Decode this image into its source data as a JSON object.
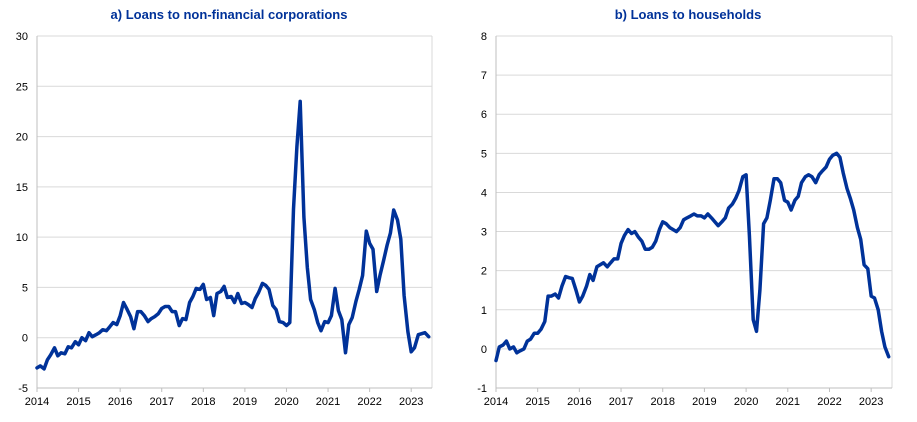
{
  "chart_data": [
    {
      "type": "line",
      "title": "a) Loans to non-financial corporations",
      "xlabel": "",
      "ylabel": "",
      "ylim": [
        -5,
        30
      ],
      "xlim": [
        2014.0,
        2023.5
      ],
      "yticks": [
        "-5",
        "0",
        "5",
        "10",
        "15",
        "20",
        "25",
        "30"
      ],
      "xticks": [
        "2014",
        "2015",
        "2016",
        "2017",
        "2018",
        "2019",
        "2020",
        "2021",
        "2022",
        "2023"
      ],
      "grid": "horizontal",
      "line_color": "#003299",
      "series": [
        {
          "x": [
            2014.0,
            2014.08,
            2014.17,
            2014.25,
            2014.33,
            2014.42,
            2014.5,
            2014.58,
            2014.67,
            2014.75,
            2014.83,
            2014.92,
            2015.0,
            2015.08,
            2015.17,
            2015.25,
            2015.33,
            2015.42,
            2015.5,
            2015.58,
            2015.67,
            2015.75,
            2015.83,
            2015.92,
            2016.0,
            2016.08,
            2016.17,
            2016.25,
            2016.33,
            2016.42,
            2016.5,
            2016.58,
            2016.67,
            2016.75,
            2016.83,
            2016.92,
            2017.0,
            2017.08,
            2017.17,
            2017.25,
            2017.33,
            2017.42,
            2017.5,
            2017.58,
            2017.67,
            2017.75,
            2017.83,
            2017.92,
            2018.0,
            2018.08,
            2018.17,
            2018.25,
            2018.33,
            2018.42,
            2018.5,
            2018.58,
            2018.67,
            2018.75,
            2018.83,
            2018.92,
            2019.0,
            2019.08,
            2019.17,
            2019.25,
            2019.33,
            2019.42,
            2019.5,
            2019.58,
            2019.67,
            2019.75,
            2019.83,
            2019.92,
            2020.0,
            2020.08,
            2020.17,
            2020.25,
            2020.33,
            2020.42,
            2020.5,
            2020.58,
            2020.67,
            2020.75,
            2020.83,
            2020.92,
            2021.0,
            2021.08,
            2021.17,
            2021.25,
            2021.33,
            2021.42,
            2021.5,
            2021.58,
            2021.67,
            2021.75,
            2021.83,
            2021.92,
            2022.0,
            2022.08,
            2022.17,
            2022.25,
            2022.33,
            2022.42,
            2022.5,
            2022.58,
            2022.67,
            2022.75,
            2022.83,
            2022.92,
            2023.0,
            2023.08,
            2023.17,
            2023.25,
            2023.33,
            2023.42
          ],
          "values": [
            -3.0,
            -2.8,
            -3.1,
            -2.2,
            -1.7,
            -1.0,
            -1.8,
            -1.5,
            -1.6,
            -0.9,
            -1.0,
            -0.4,
            -0.7,
            0.0,
            -0.3,
            0.5,
            0.1,
            0.3,
            0.5,
            0.8,
            0.7,
            1.1,
            1.5,
            1.3,
            2.2,
            3.5,
            2.8,
            2.1,
            0.9,
            2.6,
            2.6,
            2.2,
            1.6,
            1.9,
            2.1,
            2.4,
            2.9,
            3.1,
            3.1,
            2.6,
            2.6,
            1.2,
            1.9,
            1.8,
            3.5,
            4.1,
            4.9,
            4.8,
            5.3,
            3.8,
            4.0,
            2.2,
            4.4,
            4.6,
            5.1,
            4.0,
            4.1,
            3.5,
            4.4,
            3.4,
            3.5,
            3.3,
            3.0,
            3.9,
            4.5,
            5.4,
            5.2,
            4.8,
            3.2,
            2.8,
            1.6,
            1.5,
            1.2,
            1.5,
            12.8,
            19.0,
            23.5,
            12.0,
            7.0,
            3.8,
            2.8,
            1.5,
            0.7,
            1.6,
            1.5,
            2.2,
            4.9,
            2.7,
            1.8,
            -1.5,
            1.3,
            2.0,
            3.6,
            4.8,
            6.2,
            10.6,
            9.4,
            8.8,
            4.6,
            6.2,
            7.6,
            9.2,
            10.4,
            12.7,
            11.7,
            9.8,
            4.2,
            0.6,
            -1.4,
            -1.0,
            0.3,
            0.4,
            0.5,
            0.1
          ]
        }
      ]
    },
    {
      "type": "line",
      "title": "b) Loans to households",
      "xlabel": "",
      "ylabel": "",
      "ylim": [
        -1,
        8
      ],
      "xlim": [
        2014.0,
        2023.5
      ],
      "yticks": [
        "-1",
        "0",
        "1",
        "2",
        "3",
        "4",
        "5",
        "6",
        "7",
        "8"
      ],
      "xticks": [
        "2014",
        "2015",
        "2016",
        "2017",
        "2018",
        "2019",
        "2020",
        "2021",
        "2022",
        "2023"
      ],
      "grid": "horizontal",
      "line_color": "#003299",
      "series": [
        {
          "x": [
            2014.0,
            2014.08,
            2014.17,
            2014.25,
            2014.33,
            2014.42,
            2014.5,
            2014.58,
            2014.67,
            2014.75,
            2014.83,
            2014.92,
            2015.0,
            2015.08,
            2015.17,
            2015.25,
            2015.33,
            2015.42,
            2015.5,
            2015.58,
            2015.67,
            2015.75,
            2015.83,
            2015.92,
            2016.0,
            2016.08,
            2016.17,
            2016.25,
            2016.33,
            2016.42,
            2016.5,
            2016.58,
            2016.67,
            2016.75,
            2016.83,
            2016.92,
            2017.0,
            2017.08,
            2017.17,
            2017.25,
            2017.33,
            2017.42,
            2017.5,
            2017.58,
            2017.67,
            2017.75,
            2017.83,
            2017.92,
            2018.0,
            2018.08,
            2018.17,
            2018.25,
            2018.33,
            2018.42,
            2018.5,
            2018.58,
            2018.67,
            2018.75,
            2018.83,
            2018.92,
            2019.0,
            2019.08,
            2019.17,
            2019.25,
            2019.33,
            2019.42,
            2019.5,
            2019.58,
            2019.67,
            2019.75,
            2019.83,
            2019.92,
            2020.0,
            2020.08,
            2020.17,
            2020.25,
            2020.33,
            2020.42,
            2020.5,
            2020.58,
            2020.67,
            2020.75,
            2020.83,
            2020.92,
            2021.0,
            2021.08,
            2021.17,
            2021.25,
            2021.33,
            2021.42,
            2021.5,
            2021.58,
            2021.67,
            2021.75,
            2021.83,
            2021.92,
            2022.0,
            2022.08,
            2022.17,
            2022.25,
            2022.33,
            2022.42,
            2022.5,
            2022.58,
            2022.67,
            2022.75,
            2022.83,
            2022.92,
            2023.0,
            2023.08,
            2023.17,
            2023.25,
            2023.33,
            2023.42
          ],
          "values": [
            -0.3,
            0.05,
            0.1,
            0.2,
            0.0,
            0.05,
            -0.1,
            -0.05,
            0.0,
            0.2,
            0.25,
            0.4,
            0.4,
            0.5,
            0.7,
            1.35,
            1.35,
            1.4,
            1.3,
            1.6,
            1.85,
            1.82,
            1.8,
            1.5,
            1.2,
            1.35,
            1.6,
            1.9,
            1.75,
            2.1,
            2.15,
            2.2,
            2.1,
            2.2,
            2.3,
            2.3,
            2.7,
            2.9,
            3.05,
            2.95,
            3.0,
            2.85,
            2.75,
            2.55,
            2.55,
            2.6,
            2.75,
            3.05,
            3.25,
            3.2,
            3.1,
            3.05,
            3.0,
            3.1,
            3.3,
            3.35,
            3.4,
            3.45,
            3.4,
            3.4,
            3.35,
            3.45,
            3.35,
            3.25,
            3.15,
            3.25,
            3.35,
            3.6,
            3.7,
            3.85,
            4.05,
            4.4,
            4.45,
            2.9,
            0.75,
            0.45,
            1.5,
            3.2,
            3.35,
            3.8,
            4.35,
            4.35,
            4.25,
            3.8,
            3.75,
            3.55,
            3.8,
            3.9,
            4.25,
            4.4,
            4.45,
            4.4,
            4.25,
            4.45,
            4.55,
            4.65,
            4.85,
            4.95,
            5.0,
            4.9,
            4.5,
            4.1,
            3.85,
            3.55,
            3.1,
            2.8,
            2.15,
            2.05,
            1.35,
            1.3,
            1.0,
            0.45,
            0.05,
            -0.2
          ]
        }
      ]
    }
  ]
}
